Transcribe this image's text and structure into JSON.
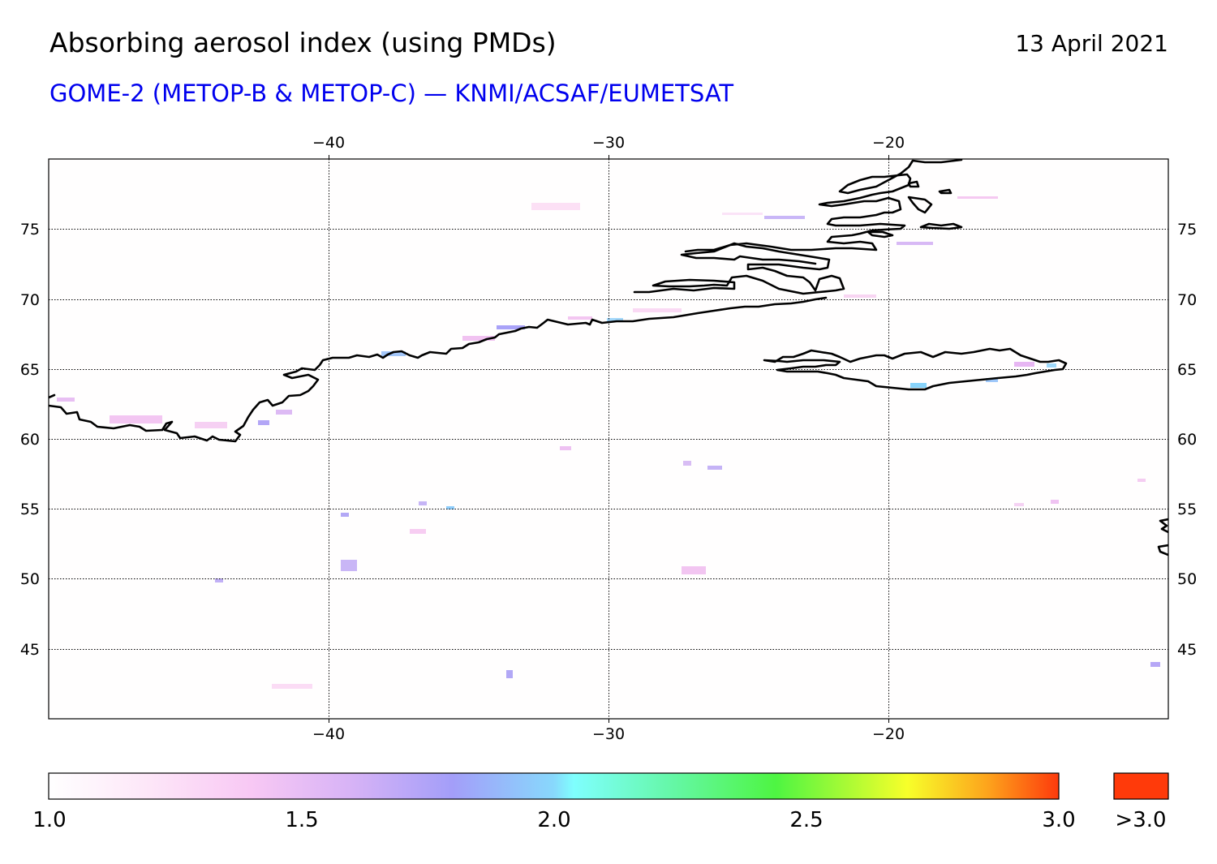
{
  "header": {
    "title": "Absorbing aerosol index (using PMDs)",
    "date": "13 April 2021",
    "subtitle": "GOME-2 (METOP-B & METOP-C) — KNMI/ACSAF/EUMETSAT"
  },
  "colors": {
    "subtitle": "#0000ee",
    "gridline": "#000000",
    "coastline": "#000000",
    "colorbar_stops": [
      "#ffffff",
      "#fbd3f3",
      "#ecb9f5",
      "#a39ef9",
      "#7fffff",
      "#5df58c",
      "#4ef542",
      "#f7ff2a",
      "#fd7f18",
      "#fd3a0c"
    ],
    "overflow": "#ff3a0a"
  },
  "map": {
    "projection": "equirectangular",
    "lon_range": [
      -50,
      -10
    ],
    "lat_range": [
      40,
      80
    ],
    "grid": "dotted",
    "top_lon_ticks": [
      "−40",
      "−30",
      "−20"
    ],
    "bottom_lon_ticks": [
      "−40",
      "−30",
      "−20"
    ],
    "left_lat_ticks": [
      "75",
      "70",
      "65",
      "60",
      "55",
      "50",
      "45"
    ],
    "right_lat_ticks": [
      "75",
      "70",
      "65",
      "60",
      "55",
      "50",
      "45"
    ],
    "lon_tick_values": [
      -40,
      -30,
      -20
    ],
    "lat_tick_values": [
      75,
      70,
      65,
      60,
      55,
      50,
      45
    ],
    "visible_regions": [
      "Greenland southeast coast",
      "Iceland",
      "Ireland west coast"
    ],
    "aerosol_level": "mostly 1.0–1.7, isolated patches near 2.0"
  },
  "colorbar": {
    "labels": [
      "1.0",
      "1.5",
      "2.0",
      "2.5",
      "3.0"
    ],
    "overflow_label": ">3.0",
    "range": [
      1.0,
      3.0
    ]
  }
}
